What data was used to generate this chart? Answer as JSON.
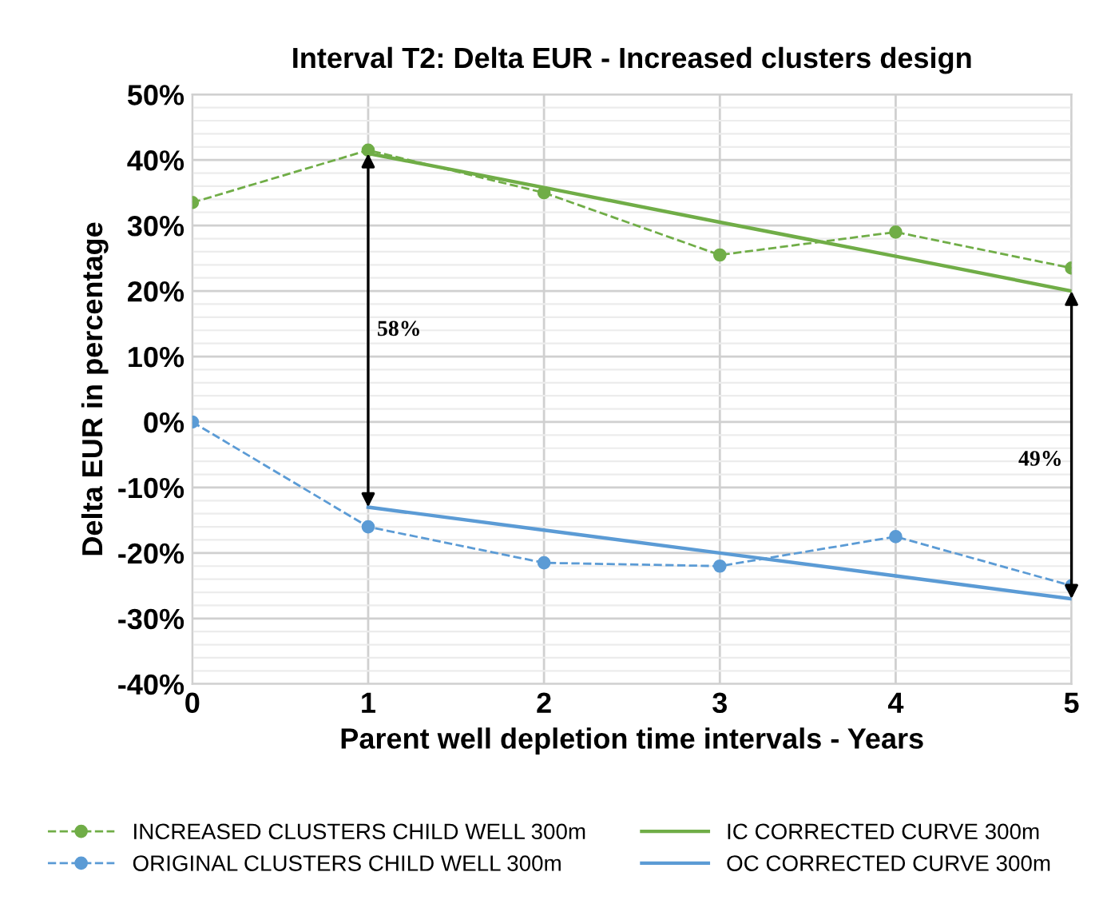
{
  "chart_data": {
    "type": "line",
    "title": "Interval T2: Delta EUR - Increased clusters design",
    "xlabel": "Parent well depletion time intervals - Years",
    "ylabel": "Delta EUR in percentage",
    "x": [
      0,
      1,
      2,
      3,
      4,
      5
    ],
    "series": [
      {
        "name": "INCREASED CLUSTERS CHILD WELL 300m",
        "color": "#70ad47",
        "values": [
          33.5,
          41.5,
          35,
          25.5,
          29,
          23.5
        ],
        "marker": "circle",
        "line_style": "dashed"
      },
      {
        "name": "ORIGINAL CLUSTERS CHILD WELL 300m",
        "color": "#5b9bd5",
        "values": [
          0,
          -16,
          -21.5,
          -22,
          -17.5,
          -25
        ],
        "marker": "circle",
        "line_style": "dashed"
      },
      {
        "name": "IC CORRECTED CURVE 300m",
        "color": "#70ad47",
        "values": [
          null,
          41,
          35.8,
          30.5,
          25.3,
          20
        ],
        "marker": "none",
        "line_style": "solid"
      },
      {
        "name": "OC CORRECTED CURVE 300m",
        "color": "#5b9bd5",
        "values": [
          null,
          -13,
          -16.5,
          -20,
          -23.5,
          -27
        ],
        "marker": "none",
        "line_style": "solid"
      }
    ],
    "xlim": [
      0,
      5
    ],
    "xticks": [
      0,
      1,
      2,
      3,
      4,
      5
    ],
    "ylim": [
      -40,
      50
    ],
    "yticks": [
      {
        "value": -40,
        "label": "-40%"
      },
      {
        "value": -30,
        "label": "-30%"
      },
      {
        "value": -20,
        "label": "-20%"
      },
      {
        "value": -10,
        "label": "-10%"
      },
      {
        "value": 0,
        "label": "0%"
      },
      {
        "value": 10,
        "label": "10%"
      },
      {
        "value": 20,
        "label": "20%"
      },
      {
        "value": 30,
        "label": "30%"
      },
      {
        "value": 40,
        "label": "40%"
      },
      {
        "value": 50,
        "label": "50%"
      }
    ],
    "grid": true,
    "legend": "bottom",
    "annotations": [
      "58%",
      "49%"
    ]
  }
}
